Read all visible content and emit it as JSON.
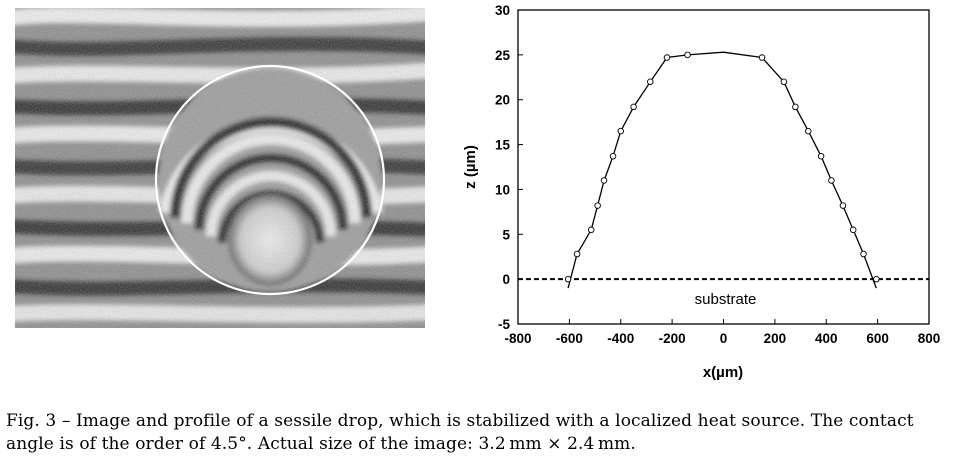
{
  "figure": {
    "image_alt": "interferometric image of a sessile drop with circular outline",
    "caption": "Fig. 3 – Image and profile of a sessile drop, which is stabilized with a localized heat source.  The contact angle is of the order of 4.5°.  Actual size of the image: 3.2 mm × 2.4 mm."
  },
  "chart_data": {
    "type": "scatter",
    "xlabel": "x(µm)",
    "ylabel": "z (µm)",
    "xlim": [
      -800,
      800
    ],
    "ylim": [
      -5,
      30
    ],
    "xticks": [
      -800,
      -600,
      -400,
      -200,
      0,
      200,
      400,
      600,
      800
    ],
    "yticks": [
      -5,
      0,
      5,
      10,
      15,
      20,
      25,
      30
    ],
    "annotation": "substrate",
    "substrate_level": 0,
    "points": {
      "x": [
        -605,
        -570,
        -515,
        -490,
        -465,
        -430,
        -400,
        -350,
        -285,
        -220,
        -140,
        150,
        235,
        280,
        330,
        380,
        420,
        465,
        505,
        545,
        595
      ],
      "y": [
        0.0,
        2.8,
        5.5,
        8.2,
        11.0,
        13.7,
        16.5,
        19.2,
        22.0,
        24.7,
        25.0,
        24.7,
        22.0,
        19.2,
        16.5,
        13.7,
        11.0,
        8.2,
        5.5,
        2.8,
        0.0
      ]
    },
    "fit_curve": {
      "x": [
        -605,
        -570,
        -515,
        -490,
        -465,
        -430,
        -400,
        -350,
        -285,
        -220,
        -140,
        0,
        150,
        235,
        280,
        330,
        380,
        420,
        465,
        505,
        545,
        595
      ],
      "y": [
        -1.0,
        2.8,
        5.5,
        8.2,
        11.0,
        13.7,
        16.5,
        19.2,
        22.0,
        24.7,
        25.0,
        25.3,
        24.7,
        22.0,
        19.2,
        16.5,
        13.7,
        11.0,
        8.2,
        5.5,
        2.8,
        -1.0
      ]
    },
    "grid": false,
    "marker": "open-circle"
  }
}
